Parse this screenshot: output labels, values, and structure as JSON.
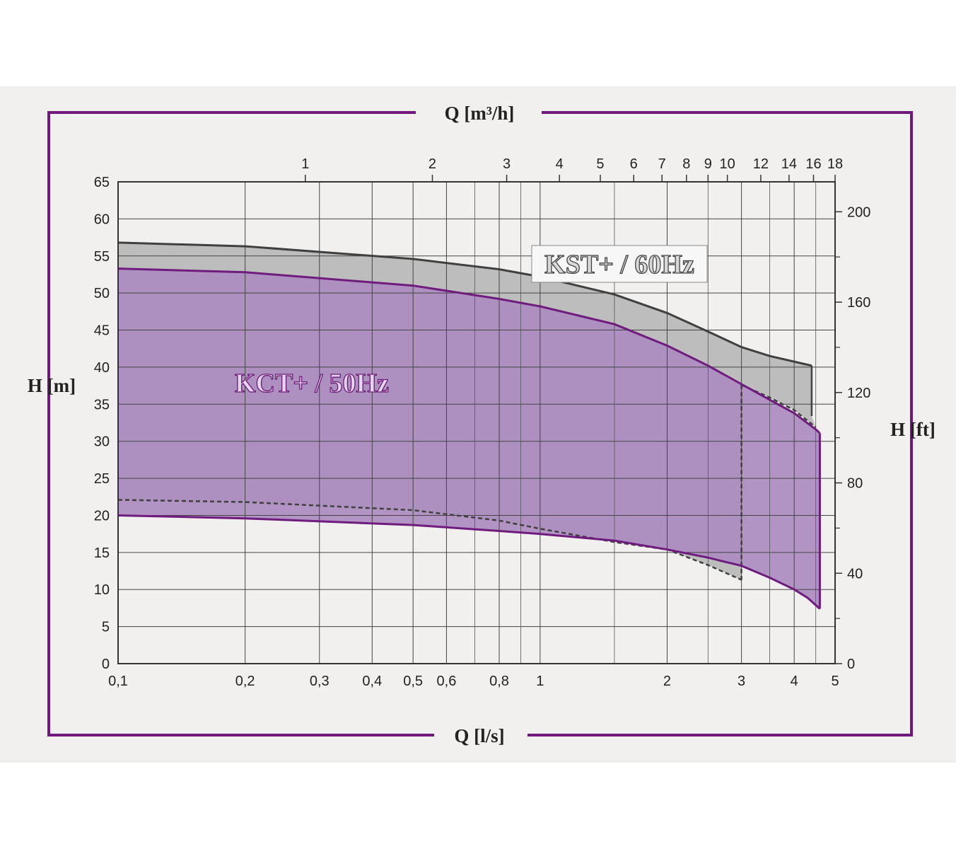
{
  "chart_data": {
    "type": "area",
    "title": "",
    "xlabel": "Q [l/s]",
    "x2label": "Q [m³/h]",
    "ylabel": "H [m]",
    "y2label": "H [ft]",
    "x_scale": "log",
    "xlim": [
      0.1,
      5
    ],
    "ylim": [
      0,
      65
    ],
    "grid": true,
    "x_ticks": [
      {
        "v": 0.1,
        "l": "0,1"
      },
      {
        "v": 0.2,
        "l": "0,2"
      },
      {
        "v": 0.3,
        "l": "0,3"
      },
      {
        "v": 0.4,
        "l": "0,4"
      },
      {
        "v": 0.5,
        "l": "0,5"
      },
      {
        "v": 0.6,
        "l": "0,6"
      },
      {
        "v": 0.8,
        "l": "0,8"
      },
      {
        "v": 1,
        "l": "1"
      },
      {
        "v": 2,
        "l": "2"
      },
      {
        "v": 3,
        "l": "3"
      },
      {
        "v": 4,
        "l": "4"
      },
      {
        "v": 5,
        "l": "5"
      }
    ],
    "x_minor": [
      0.7,
      0.9,
      1.5,
      2.5,
      3.5,
      4.5
    ],
    "x2_ticks": [
      {
        "v": 1,
        "l": "1"
      },
      {
        "v": 2,
        "l": "2"
      },
      {
        "v": 3,
        "l": "3"
      },
      {
        "v": 4,
        "l": "4"
      },
      {
        "v": 5,
        "l": "5"
      },
      {
        "v": 6,
        "l": "6"
      },
      {
        "v": 7,
        "l": "7"
      },
      {
        "v": 8,
        "l": "8"
      },
      {
        "v": 9,
        "l": "9"
      },
      {
        "v": 10,
        "l": "10"
      },
      {
        "v": 12,
        "l": "12"
      },
      {
        "v": 14,
        "l": "14"
      },
      {
        "v": 16,
        "l": "16"
      },
      {
        "v": 18,
        "l": "18"
      }
    ],
    "y_ticks": [
      0,
      5,
      10,
      15,
      20,
      25,
      30,
      35,
      40,
      45,
      50,
      55,
      60,
      65
    ],
    "y2_ticks": [
      {
        "v": 0,
        "l": "0"
      },
      {
        "v": 40,
        "l": "40"
      },
      {
        "v": 80,
        "l": "80"
      },
      {
        "v": 120,
        "l": "120"
      },
      {
        "v": 160,
        "l": "160"
      },
      {
        "v": 200,
        "l": "200"
      }
    ],
    "y2_minor": [
      20,
      60,
      100,
      140,
      180
    ],
    "series": [
      {
        "name": "KST+ / 60Hz",
        "color": "#b9b9b9",
        "edge_color": "#404040",
        "upper": [
          [
            0.1,
            56.8
          ],
          [
            0.2,
            56.3
          ],
          [
            0.5,
            54.6
          ],
          [
            0.8,
            53.2
          ],
          [
            1,
            52.2
          ],
          [
            1.5,
            49.8
          ],
          [
            2,
            47.3
          ],
          [
            2.5,
            44.8
          ],
          [
            3,
            42.7
          ],
          [
            3.5,
            41.5
          ],
          [
            4.4,
            40.2
          ]
        ],
        "right_edge": [
          [
            4.4,
            40.2
          ],
          [
            4.4,
            33.4
          ]
        ],
        "lower_dashed": [
          [
            0.1,
            22.1
          ],
          [
            0.2,
            21.8
          ],
          [
            0.5,
            20.7
          ],
          [
            0.8,
            19.3
          ],
          [
            1,
            18.2
          ],
          [
            1.5,
            16.4
          ],
          [
            2,
            15.4
          ],
          [
            2.5,
            13.3
          ],
          [
            3,
            11.3
          ]
        ],
        "inner_dashed": [
          [
            3,
            37.6
          ],
          [
            3,
            11.3
          ]
        ],
        "upper_dashed": [
          [
            3,
            37.6
          ],
          [
            3.5,
            35.9
          ],
          [
            4,
            34.2
          ],
          [
            4.5,
            31.9
          ]
        ]
      },
      {
        "name": "KCT+ / 50Hz",
        "color": "#ab8bc0",
        "edge_color": "#701c7e",
        "upper": [
          [
            0.1,
            53.3
          ],
          [
            0.2,
            52.8
          ],
          [
            0.5,
            51
          ],
          [
            0.8,
            49.2
          ],
          [
            1,
            48.2
          ],
          [
            1.5,
            45.8
          ],
          [
            2,
            42.9
          ],
          [
            2.5,
            40.2
          ],
          [
            3,
            37.7
          ],
          [
            3.5,
            35.6
          ],
          [
            4,
            33.8
          ],
          [
            4.5,
            31.6
          ],
          [
            4.6,
            31.1
          ]
        ],
        "lower": [
          [
            0.1,
            20
          ],
          [
            0.2,
            19.6
          ],
          [
            0.5,
            18.7
          ],
          [
            0.8,
            17.9
          ],
          [
            1,
            17.5
          ],
          [
            1.5,
            16.6
          ],
          [
            2,
            15.4
          ],
          [
            2.5,
            14.3
          ],
          [
            3,
            13.2
          ],
          [
            3.5,
            11.6
          ],
          [
            4,
            10
          ],
          [
            4.3,
            8.9
          ],
          [
            4.6,
            7.4
          ]
        ]
      }
    ]
  }
}
